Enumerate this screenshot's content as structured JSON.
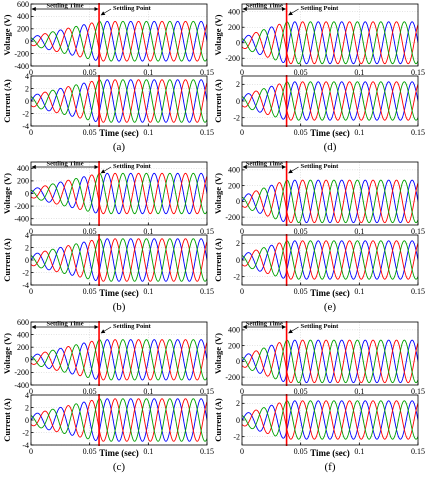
{
  "panels": [
    {
      "id": "a",
      "caption": "(a)",
      "settling_time": 0.058,
      "annotations": {
        "settling_time": "Settling Time",
        "settling_point": "Settling Point"
      },
      "voltage": {
        "ylabel": "Voltage (V)",
        "ylim": [
          -400,
          600
        ],
        "yticks": [
          -400,
          -200,
          0,
          200,
          400,
          600
        ],
        "amplitude_start": 60,
        "amplitude_final": 320
      },
      "current": {
        "ylabel": "Current (A)",
        "ylim": [
          -4,
          4
        ],
        "yticks": [
          -4,
          -2,
          0,
          2,
          4
        ],
        "amplitude_start": 0.8,
        "amplitude_final": 3.4
      },
      "xlabel": "Time (sec)",
      "xticks": [
        0,
        0.05,
        0.1,
        0.15
      ],
      "xtick_labels": [
        "0",
        "0.05",
        "0.1",
        "0.15"
      ]
    },
    {
      "id": "d",
      "caption": "(d)",
      "settling_time": 0.038,
      "annotations": {
        "settling_time": "Settling Time",
        "settling_point": "Settling Point"
      },
      "voltage": {
        "ylabel": "Voltage (V)",
        "ylim": [
          -300,
          500
        ],
        "yticks": [
          -200,
          0,
          200,
          400
        ],
        "amplitude_start": 60,
        "amplitude_final": 270
      },
      "current": {
        "ylabel": "Current (A)",
        "ylim": [
          -3,
          3
        ],
        "yticks": [
          -2,
          0,
          2
        ],
        "amplitude_start": 0.6,
        "amplitude_final": 2.3
      },
      "xlabel": "Time (sec)",
      "xticks": [
        0,
        0.05,
        0.1,
        0.15
      ],
      "xtick_labels": [
        "0",
        "0.05",
        "0.1",
        "0.15"
      ]
    },
    {
      "id": "b",
      "caption": "(b)",
      "settling_time": 0.058,
      "annotations": {
        "settling_time": "Settling Time",
        "settling_point": "Settling Point"
      },
      "voltage": {
        "ylabel": "Voltage (V)",
        "ylim": [
          -500,
          500
        ],
        "yticks": [
          -400,
          -200,
          0,
          200,
          400
        ],
        "amplitude_start": 60,
        "amplitude_final": 320
      },
      "current": {
        "ylabel": "Current (A)",
        "ylim": [
          -4,
          4
        ],
        "yticks": [
          -4,
          -2,
          0,
          2,
          4
        ],
        "amplitude_start": 0.8,
        "amplitude_final": 3.4
      },
      "xlabel": "Time (sec)",
      "xticks": [
        0,
        0.05,
        0.1,
        0.15
      ],
      "xtick_labels": [
        "0",
        "0.05",
        "0.1",
        "0.15"
      ]
    },
    {
      "id": "e",
      "caption": "(e)",
      "settling_time": 0.038,
      "annotations": {
        "settling_time": "Settling Time",
        "settling_point": "Settling Point"
      },
      "voltage": {
        "ylabel": "Voltage (V)",
        "ylim": [
          -300,
          500
        ],
        "yticks": [
          -200,
          0,
          200,
          400
        ],
        "amplitude_start": 60,
        "amplitude_final": 270
      },
      "current": {
        "ylabel": "Current (A)",
        "ylim": [
          -3,
          3
        ],
        "yticks": [
          -2,
          0,
          2
        ],
        "amplitude_start": 0.6,
        "amplitude_final": 2.3
      },
      "xlabel": "Time (sec)",
      "xticks": [
        0,
        0.05,
        0.1,
        0.15
      ],
      "xtick_labels": [
        "0",
        "0.05",
        "0.1",
        "0.15"
      ]
    },
    {
      "id": "c",
      "caption": "(c)",
      "settling_time": 0.058,
      "annotations": {
        "settling_time": "Settling Time",
        "settling_point": "Settling Point"
      },
      "voltage": {
        "ylabel": "Voltage (V)",
        "ylim": [
          -400,
          600
        ],
        "yticks": [
          -400,
          -200,
          0,
          200,
          400,
          600
        ],
        "amplitude_start": 60,
        "amplitude_final": 320
      },
      "current": {
        "ylabel": "Current (A)",
        "ylim": [
          -4,
          4
        ],
        "yticks": [
          -4,
          -2,
          0,
          2,
          4
        ],
        "amplitude_start": 0.8,
        "amplitude_final": 3.4
      },
      "xlabel": "Time (sec)",
      "xticks": [
        0,
        0.05,
        0.1,
        0.15
      ],
      "xtick_labels": [
        "0",
        "0.05",
        "0.1",
        "0.15"
      ]
    },
    {
      "id": "f",
      "caption": "(f)",
      "settling_time": 0.038,
      "annotations": {
        "settling_time": "Settling Time",
        "settling_point": "Settling Point"
      },
      "voltage": {
        "ylabel": "Voltage (V)",
        "ylim": [
          -300,
          500
        ],
        "yticks": [
          -200,
          0,
          200,
          400
        ],
        "amplitude_start": 60,
        "amplitude_final": 270
      },
      "current": {
        "ylabel": "Current (A)",
        "ylim": [
          -3,
          3
        ],
        "yticks": [
          -2,
          0,
          2
        ],
        "amplitude_start": 0.6,
        "amplitude_final": 2.3
      },
      "xlabel": "Time (sec)",
      "xticks": [
        0,
        0.05,
        0.1,
        0.15
      ],
      "xtick_labels": [
        "0",
        "0.05",
        "0.1",
        "0.15"
      ]
    }
  ],
  "chart_data": [
    {
      "type": "line",
      "panel": "a",
      "xlabel": "Time (sec)",
      "ylabel": "Voltage (V)",
      "xlim": [
        0,
        0.15
      ],
      "ylim": [
        -400,
        600
      ],
      "frequency_hz": 50,
      "three_phase": true,
      "series_colors": [
        "#0000ff",
        "#ff0000",
        "#00a000"
      ],
      "settling_time": 0.058
    },
    {
      "type": "line",
      "panel": "a",
      "xlabel": "Time (sec)",
      "ylabel": "Current (A)",
      "xlim": [
        0,
        0.15
      ],
      "ylim": [
        -4,
        4
      ],
      "frequency_hz": 50,
      "three_phase": true,
      "series_colors": [
        "#0000ff",
        "#ff0000",
        "#00a000"
      ],
      "settling_time": 0.058
    },
    {
      "type": "line",
      "panel": "d",
      "xlabel": "Time (sec)",
      "ylabel": "Voltage (V)",
      "xlim": [
        0,
        0.15
      ],
      "ylim": [
        -300,
        500
      ],
      "frequency_hz": 50,
      "three_phase": true,
      "series_colors": [
        "#0000ff",
        "#ff0000",
        "#00a000"
      ],
      "settling_time": 0.038
    },
    {
      "type": "line",
      "panel": "d",
      "xlabel": "Time (sec)",
      "ylabel": "Current (A)",
      "xlim": [
        0,
        0.15
      ],
      "ylim": [
        -3,
        3
      ],
      "frequency_hz": 50,
      "three_phase": true,
      "series_colors": [
        "#0000ff",
        "#ff0000",
        "#00a000"
      ],
      "settling_time": 0.038
    },
    {
      "type": "line",
      "panel": "b",
      "xlabel": "Time (sec)",
      "ylabel": "Voltage (V)",
      "xlim": [
        0,
        0.15
      ],
      "ylim": [
        -500,
        500
      ],
      "frequency_hz": 50,
      "three_phase": true,
      "series_colors": [
        "#0000ff",
        "#ff0000",
        "#00a000"
      ],
      "settling_time": 0.058
    },
    {
      "type": "line",
      "panel": "b",
      "xlabel": "Time (sec)",
      "ylabel": "Current (A)",
      "xlim": [
        0,
        0.15
      ],
      "ylim": [
        -4,
        4
      ],
      "frequency_hz": 50,
      "three_phase": true,
      "series_colors": [
        "#0000ff",
        "#ff0000",
        "#00a000"
      ],
      "settling_time": 0.058
    },
    {
      "type": "line",
      "panel": "e",
      "xlabel": "Time (sec)",
      "ylabel": "Voltage (V)",
      "xlim": [
        0,
        0.15
      ],
      "ylim": [
        -300,
        500
      ],
      "frequency_hz": 50,
      "three_phase": true,
      "series_colors": [
        "#0000ff",
        "#ff0000",
        "#00a000"
      ],
      "settling_time": 0.038
    },
    {
      "type": "line",
      "panel": "e",
      "xlabel": "Time (sec)",
      "ylabel": "Current (A)",
      "xlim": [
        0,
        0.15
      ],
      "ylim": [
        -3,
        3
      ],
      "frequency_hz": 50,
      "three_phase": true,
      "series_colors": [
        "#0000ff",
        "#ff0000",
        "#00a000"
      ],
      "settling_time": 0.038
    },
    {
      "type": "line",
      "panel": "c",
      "xlabel": "Time (sec)",
      "ylabel": "Voltage (V)",
      "xlim": [
        0,
        0.15
      ],
      "ylim": [
        -400,
        600
      ],
      "frequency_hz": 50,
      "three_phase": true,
      "series_colors": [
        "#0000ff",
        "#ff0000",
        "#00a000"
      ],
      "settling_time": 0.058
    },
    {
      "type": "line",
      "panel": "c",
      "xlabel": "Time (sec)",
      "ylabel": "Current (A)",
      "xlim": [
        0,
        0.15
      ],
      "ylim": [
        -4,
        4
      ],
      "frequency_hz": 50,
      "three_phase": true,
      "series_colors": [
        "#0000ff",
        "#ff0000",
        "#00a000"
      ],
      "settling_time": 0.058
    },
    {
      "type": "line",
      "panel": "f",
      "xlabel": "Time (sec)",
      "ylabel": "Voltage (V)",
      "xlim": [
        0,
        0.15
      ],
      "ylim": [
        -300,
        500
      ],
      "frequency_hz": 50,
      "three_phase": true,
      "series_colors": [
        "#0000ff",
        "#ff0000",
        "#00a000"
      ],
      "settling_time": 0.038
    },
    {
      "type": "line",
      "panel": "f",
      "xlabel": "Time (sec)",
      "ylabel": "Current (A)",
      "xlim": [
        0,
        0.15
      ],
      "ylim": [
        -3,
        3
      ],
      "frequency_hz": 50,
      "three_phase": true,
      "series_colors": [
        "#0000ff",
        "#ff0000",
        "#00a000"
      ],
      "settling_time": 0.038
    }
  ],
  "colors": {
    "phase_a": "#0000ff",
    "phase_b": "#ff0000",
    "phase_c": "#00a000",
    "settling_line": "#ff0000",
    "axis": "#000000",
    "grid": "#c8c8c8"
  }
}
